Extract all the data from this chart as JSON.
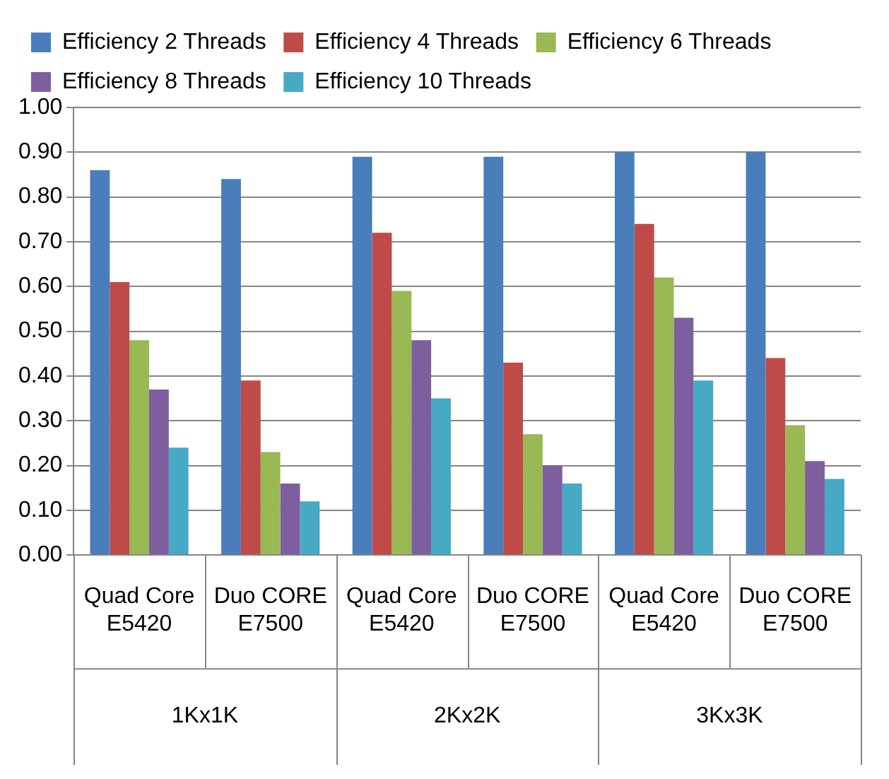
{
  "chart_data": {
    "type": "bar",
    "categories": [
      "Quad Core E5420",
      "Duo CORE E7500",
      "Quad Core E5420",
      "Duo CORE E7500",
      "Quad Core E5420",
      "Duo CORE E7500"
    ],
    "annotations": [
      "1Kx1K",
      "2Kx2K",
      "3Kx3K"
    ],
    "series": [
      {
        "name": "Efficiency 2 Threads",
        "color": "#4a7ebb",
        "values": [
          0.86,
          0.84,
          0.89,
          0.89,
          0.9,
          0.9
        ]
      },
      {
        "name": "Efficiency 4 Threads",
        "color": "#be4b48",
        "values": [
          0.61,
          0.39,
          0.72,
          0.43,
          0.74,
          0.44
        ]
      },
      {
        "name": "Efficiency 6 Threads",
        "color": "#98b954",
        "values": [
          0.48,
          0.23,
          0.59,
          0.27,
          0.62,
          0.29
        ]
      },
      {
        "name": "Efficiency 8 Threads",
        "color": "#7d5fa0",
        "values": [
          0.37,
          0.16,
          0.48,
          0.2,
          0.53,
          0.21
        ]
      },
      {
        "name": "Efficiency 10 Threads",
        "color": "#46aac5",
        "values": [
          0.24,
          0.12,
          0.35,
          0.16,
          0.39,
          0.17
        ]
      }
    ],
    "ylim": [
      0,
      1
    ],
    "yticks": [
      {
        "value": 0,
        "label": "0.00"
      },
      {
        "value": 0.1,
        "label": "0.10"
      },
      {
        "value": 0.2,
        "label": "0.20"
      },
      {
        "value": 0.3,
        "label": "0.30"
      },
      {
        "value": 0.4,
        "label": "0.40"
      },
      {
        "value": 0.5,
        "label": "0.50"
      },
      {
        "value": 0.6,
        "label": "0.60"
      },
      {
        "value": 0.7,
        "label": "0.70"
      },
      {
        "value": 0.8,
        "label": "0.80"
      },
      {
        "value": 0.9,
        "label": "0.90"
      },
      {
        "value": 1,
        "label": "1.00"
      }
    ],
    "grid": "y",
    "legend": "top"
  }
}
